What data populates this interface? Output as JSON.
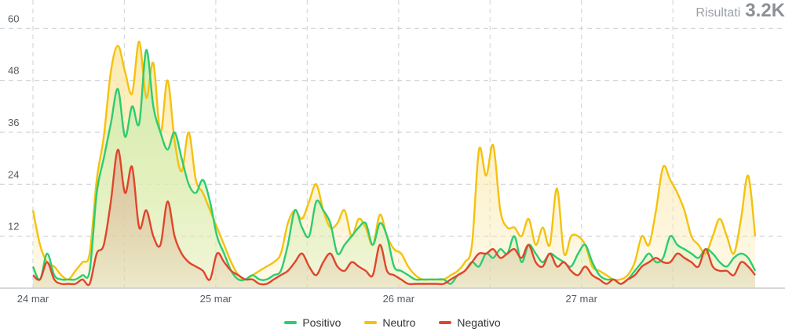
{
  "header": {
    "label": "Risultati",
    "value": "3.2K"
  },
  "chart_data": {
    "type": "area",
    "x_labels": [
      "24 mar",
      "25 mar",
      "26 mar",
      "27 mar"
    ],
    "x_range_days": [
      24.0,
      27.95
    ],
    "ylim": [
      0,
      65
    ],
    "y_ticks": [
      12,
      24,
      36,
      48,
      60
    ],
    "grid": true,
    "legend_position": "bottom-center",
    "series": [
      {
        "name": "Positivo",
        "color": "#2ecc71",
        "fill": "#cfeeb0",
        "values": [
          5,
          2,
          8,
          3,
          2,
          2,
          2,
          3,
          4,
          22,
          30,
          38,
          46,
          35,
          42,
          38,
          55,
          42,
          36,
          32,
          36,
          30,
          24,
          22,
          25,
          20,
          12,
          8,
          4,
          2,
          2,
          3,
          2,
          2,
          3,
          4,
          10,
          18,
          14,
          12,
          20,
          18,
          15,
          8,
          10,
          12,
          14,
          15,
          10,
          15,
          12,
          5,
          4,
          3,
          2,
          2,
          2,
          2,
          2,
          1,
          3,
          4,
          6,
          5,
          8,
          7,
          9,
          8,
          12,
          6,
          10,
          8,
          6,
          8,
          7,
          6,
          5,
          8,
          10,
          6,
          3,
          2,
          2,
          1,
          2,
          4,
          6,
          8,
          6,
          7,
          12,
          10,
          9,
          8,
          7,
          9,
          8,
          6,
          5,
          7,
          8,
          7,
          4
        ]
      },
      {
        "name": "Neutro",
        "color": "#f4c20d",
        "fill": "#fbe9ab",
        "values": [
          18,
          10,
          6,
          5,
          3,
          2,
          4,
          6,
          8,
          25,
          35,
          50,
          56,
          50,
          45,
          57,
          44,
          52,
          36,
          48,
          34,
          27,
          36,
          25,
          22,
          18,
          14,
          10,
          6,
          3,
          2,
          3,
          4,
          5,
          6,
          8,
          15,
          18,
          16,
          20,
          24,
          18,
          14,
          15,
          18,
          12,
          16,
          14,
          10,
          17,
          12,
          9,
          8,
          5,
          3,
          2,
          2,
          2,
          2,
          3,
          4,
          6,
          10,
          32,
          26,
          33,
          18,
          14,
          14,
          12,
          16,
          10,
          14,
          10,
          23,
          8,
          12,
          12,
          10,
          5,
          4,
          3,
          2,
          2,
          3,
          6,
          12,
          10,
          18,
          28,
          25,
          22,
          18,
          12,
          10,
          8,
          12,
          16,
          12,
          8,
          16,
          26,
          12
        ]
      },
      {
        "name": "Negativo",
        "color": "#e0452c",
        "fill": "#ddbf9d",
        "values": [
          3,
          2,
          6,
          2,
          1,
          1,
          1,
          2,
          1,
          8,
          10,
          20,
          32,
          22,
          28,
          14,
          18,
          12,
          10,
          20,
          12,
          8,
          6,
          5,
          4,
          2,
          8,
          6,
          4,
          3,
          2,
          2,
          1,
          1,
          2,
          3,
          4,
          6,
          8,
          5,
          3,
          6,
          8,
          5,
          4,
          6,
          5,
          4,
          3,
          10,
          4,
          3,
          2,
          1,
          1,
          1,
          1,
          1,
          1,
          2,
          3,
          4,
          6,
          8,
          8,
          9,
          7,
          8,
          9,
          7,
          10,
          6,
          5,
          8,
          5,
          6,
          4,
          3,
          5,
          3,
          2,
          1,
          2,
          1,
          2,
          3,
          5,
          6,
          7,
          6,
          6,
          8,
          7,
          6,
          5,
          9,
          5,
          4,
          4,
          3,
          6,
          5,
          3
        ]
      }
    ]
  }
}
